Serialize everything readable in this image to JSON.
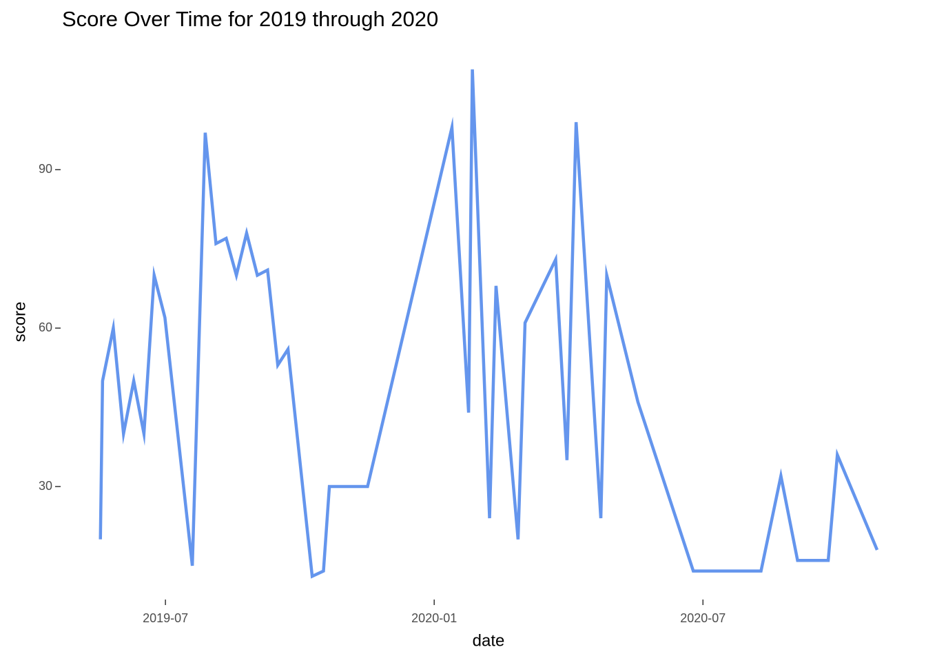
{
  "chart_data": {
    "type": "line",
    "title": "Score Over Time for 2019 through 2020",
    "x_label": "date",
    "y_label": "score",
    "x": [
      2019.379,
      2019.383,
      2019.403,
      2019.422,
      2019.441,
      2019.46,
      2019.479,
      2019.499,
      2019.55,
      2019.574,
      2019.594,
      2019.613,
      2019.632,
      2019.651,
      2019.671,
      2019.69,
      2019.709,
      2019.728,
      2019.773,
      2019.794,
      2019.805,
      2019.876,
      2020.033,
      2020.064,
      2020.071,
      2020.103,
      2020.115,
      2020.156,
      2020.169,
      2020.226,
      2020.247,
      2020.264,
      2020.31,
      2020.321,
      2020.379,
      2020.482,
      2020.608,
      2020.645,
      2020.676,
      2020.733,
      2020.75,
      2020.824
    ],
    "series": [
      {
        "name": "score",
        "color": "#6495ED",
        "values": [
          20,
          50,
          60,
          40,
          50,
          40,
          70,
          62,
          15,
          97,
          76,
          77,
          70,
          78,
          70,
          71,
          53,
          56,
          13,
          14,
          30,
          30,
          98,
          44,
          109,
          24,
          68,
          20,
          61,
          73,
          35,
          99,
          24,
          70,
          46,
          14,
          14,
          32,
          16,
          16,
          36,
          18
        ]
      }
    ],
    "xlim": [
      2019.305,
      2020.897
    ],
    "xticks": [
      {
        "value": 2019.5,
        "label": "2019-07"
      },
      {
        "value": 2020.0,
        "label": "2020-01"
      },
      {
        "value": 2020.5,
        "label": "2020-07"
      }
    ],
    "ylim": [
      8.6,
      113
    ],
    "yticks": [
      30,
      60,
      90
    ],
    "grid": false
  }
}
